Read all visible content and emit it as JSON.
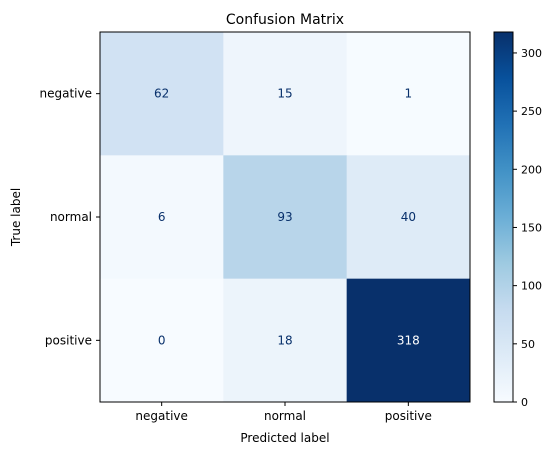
{
  "chart_data": {
    "type": "heatmap",
    "title": "Confusion Matrix",
    "xlabel": "Predicted label",
    "ylabel": "True label",
    "x_categories": [
      "negative",
      "normal",
      "positive"
    ],
    "y_categories": [
      "negative",
      "normal",
      "positive"
    ],
    "values": [
      [
        62,
        15,
        1
      ],
      [
        6,
        93,
        40
      ],
      [
        0,
        18,
        318
      ]
    ],
    "colormap": "Blues",
    "color_range": [
      0,
      318
    ],
    "colorbar_ticks": [
      0,
      50,
      100,
      150,
      200,
      250,
      300
    ],
    "grid": false
  }
}
